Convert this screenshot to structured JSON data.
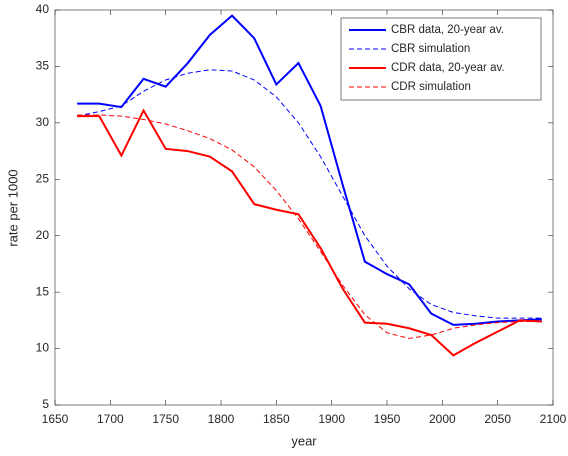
{
  "chart_data": {
    "type": "line",
    "xlabel": "year",
    "ylabel": "rate per 1000",
    "x": [
      1670,
      1690,
      1710,
      1730,
      1750,
      1770,
      1790,
      1810,
      1830,
      1850,
      1870,
      1890,
      1910,
      1930,
      1950,
      1970,
      1990,
      2010,
      2030,
      2050,
      2070,
      2090
    ],
    "series": [
      {
        "name": "CBR data, 20-year av.",
        "color": "#0000ff",
        "style": "solid",
        "values": [
          31.7,
          31.7,
          31.4,
          33.9,
          33.2,
          35.3,
          37.8,
          39.5,
          37.5,
          33.4,
          35.3,
          31.5,
          24.5,
          17.7,
          16.6,
          15.7,
          13.1,
          12.1,
          12.2,
          12.4,
          12.5,
          12.6
        ]
      },
      {
        "name": "CBR simulation",
        "color": "#0000ff",
        "style": "dashed",
        "values": [
          30.6,
          31.0,
          31.5,
          32.8,
          33.8,
          34.4,
          34.7,
          34.6,
          33.8,
          32.3,
          30.0,
          27.0,
          23.5,
          20.0,
          17.3,
          15.3,
          13.9,
          13.2,
          12.9,
          12.7,
          12.7,
          12.7
        ]
      },
      {
        "name": "CDR data, 20-year av.",
        "color": "#ff0000",
        "style": "solid",
        "values": [
          30.6,
          30.6,
          27.1,
          31.1,
          27.7,
          27.5,
          27.0,
          25.7,
          22.8,
          22.3,
          21.9,
          18.9,
          15.3,
          12.3,
          12.2,
          11.8,
          11.2,
          9.4,
          10.5,
          11.5,
          12.5,
          12.4
        ]
      },
      {
        "name": "CDR simulation",
        "color": "#ff0000",
        "style": "dashed",
        "values": [
          30.7,
          30.7,
          30.6,
          30.3,
          29.9,
          29.3,
          28.6,
          27.6,
          26.1,
          24.0,
          21.5,
          18.6,
          15.6,
          13.0,
          11.4,
          10.9,
          11.2,
          11.8,
          12.1,
          12.3,
          12.4,
          12.4
        ]
      }
    ],
    "xlim": [
      1650,
      2100
    ],
    "xticks": [
      1650,
      1700,
      1750,
      1800,
      1850,
      1900,
      1950,
      2000,
      2050,
      2100
    ],
    "ylim": [
      5,
      40
    ],
    "yticks": [
      5,
      10,
      15,
      20,
      25,
      30,
      35,
      40
    ],
    "grid": false,
    "legend": "top-right"
  }
}
